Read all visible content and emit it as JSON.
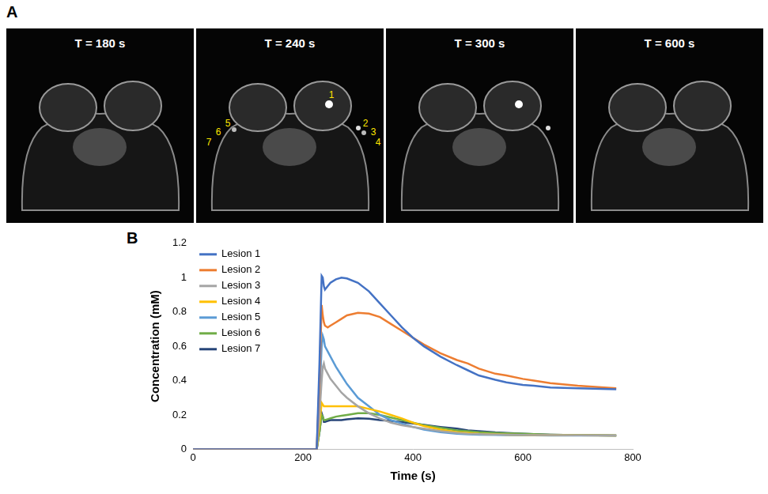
{
  "panel_a": {
    "label": "A",
    "frames": [
      {
        "title": "T = 180 s"
      },
      {
        "title": "T = 240 s",
        "labels": [
          "1",
          "2",
          "3",
          "4",
          "5",
          "6",
          "7"
        ]
      },
      {
        "title": "T = 300 s"
      },
      {
        "title": "T = 600 s"
      }
    ]
  },
  "chart_data": {
    "label": "B",
    "type": "line",
    "x_label": "Time (s)",
    "y_label": "Concentration (mM)",
    "x": [
      0,
      225,
      230,
      234,
      236,
      238,
      240,
      245,
      250,
      260,
      270,
      280,
      300,
      320,
      340,
      360,
      380,
      400,
      420,
      450,
      480,
      500,
      520,
      550,
      570,
      600,
      620,
      650,
      700,
      770
    ],
    "series": [
      {
        "name": "Lesion 1",
        "color": "#4472c4",
        "values": [
          0,
          0,
          0.5,
          1.01,
          1.0,
          0.95,
          0.93,
          0.95,
          0.97,
          0.99,
          1.0,
          0.995,
          0.97,
          0.92,
          0.85,
          0.78,
          0.71,
          0.65,
          0.6,
          0.54,
          0.49,
          0.46,
          0.43,
          0.405,
          0.39,
          0.375,
          0.37,
          0.36,
          0.355,
          0.35
        ]
      },
      {
        "name": "Lesion 2",
        "color": "#ed7d31",
        "values": [
          0,
          0,
          0.4,
          0.84,
          0.78,
          0.74,
          0.72,
          0.71,
          0.72,
          0.74,
          0.76,
          0.78,
          0.795,
          0.79,
          0.77,
          0.73,
          0.69,
          0.65,
          0.61,
          0.56,
          0.52,
          0.5,
          0.47,
          0.44,
          0.43,
          0.41,
          0.4,
          0.385,
          0.37,
          0.355
        ]
      },
      {
        "name": "Lesion 3",
        "color": "#a5a5a5",
        "values": [
          0,
          0,
          0.2,
          0.4,
          0.48,
          0.5,
          0.47,
          0.44,
          0.41,
          0.37,
          0.33,
          0.3,
          0.25,
          0.21,
          0.18,
          0.155,
          0.14,
          0.13,
          0.12,
          0.105,
          0.095,
          0.09,
          0.088,
          0.086,
          0.085,
          0.084,
          0.083,
          0.082,
          0.081,
          0.08
        ]
      },
      {
        "name": "Lesion 4",
        "color": "#ffc000",
        "values": [
          0,
          0,
          0.15,
          0.27,
          0.26,
          0.25,
          0.25,
          0.25,
          0.25,
          0.25,
          0.25,
          0.25,
          0.25,
          0.235,
          0.22,
          0.2,
          0.18,
          0.155,
          0.135,
          0.115,
          0.1,
          0.095,
          0.09,
          0.087,
          0.085,
          0.084,
          0.083,
          0.082,
          0.081,
          0.08
        ]
      },
      {
        "name": "Lesion 5",
        "color": "#5b9bd5",
        "values": [
          0,
          0,
          0.3,
          0.6,
          0.66,
          0.64,
          0.6,
          0.57,
          0.54,
          0.48,
          0.43,
          0.38,
          0.3,
          0.25,
          0.2,
          0.17,
          0.15,
          0.13,
          0.115,
          0.1,
          0.09,
          0.087,
          0.085,
          0.083,
          0.082,
          0.081,
          0.081,
          0.08,
          0.08,
          0.08
        ]
      },
      {
        "name": "Lesion 6",
        "color": "#70ad47",
        "values": [
          0,
          0,
          0.1,
          0.2,
          0.19,
          0.17,
          0.17,
          0.175,
          0.18,
          0.19,
          0.195,
          0.2,
          0.21,
          0.21,
          0.2,
          0.185,
          0.17,
          0.155,
          0.14,
          0.125,
          0.11,
          0.105,
          0.1,
          0.095,
          0.093,
          0.09,
          0.088,
          0.085,
          0.082,
          0.08
        ]
      },
      {
        "name": "Lesion 7",
        "color": "#264478",
        "values": [
          0,
          0,
          0.1,
          0.21,
          0.19,
          0.16,
          0.16,
          0.165,
          0.17,
          0.17,
          0.17,
          0.175,
          0.18,
          0.178,
          0.17,
          0.165,
          0.158,
          0.15,
          0.142,
          0.13,
          0.12,
          0.11,
          0.105,
          0.098,
          0.095,
          0.09,
          0.088,
          0.085,
          0.082,
          0.08
        ]
      }
    ],
    "xlim": [
      0,
      800
    ],
    "xticks": [
      0,
      200,
      400,
      600,
      800
    ],
    "ylim": [
      0,
      1.2
    ],
    "yticks": [
      0,
      0.2,
      0.4,
      0.6,
      0.8,
      1,
      1.2
    ],
    "grid": false,
    "legend": "upper left"
  }
}
